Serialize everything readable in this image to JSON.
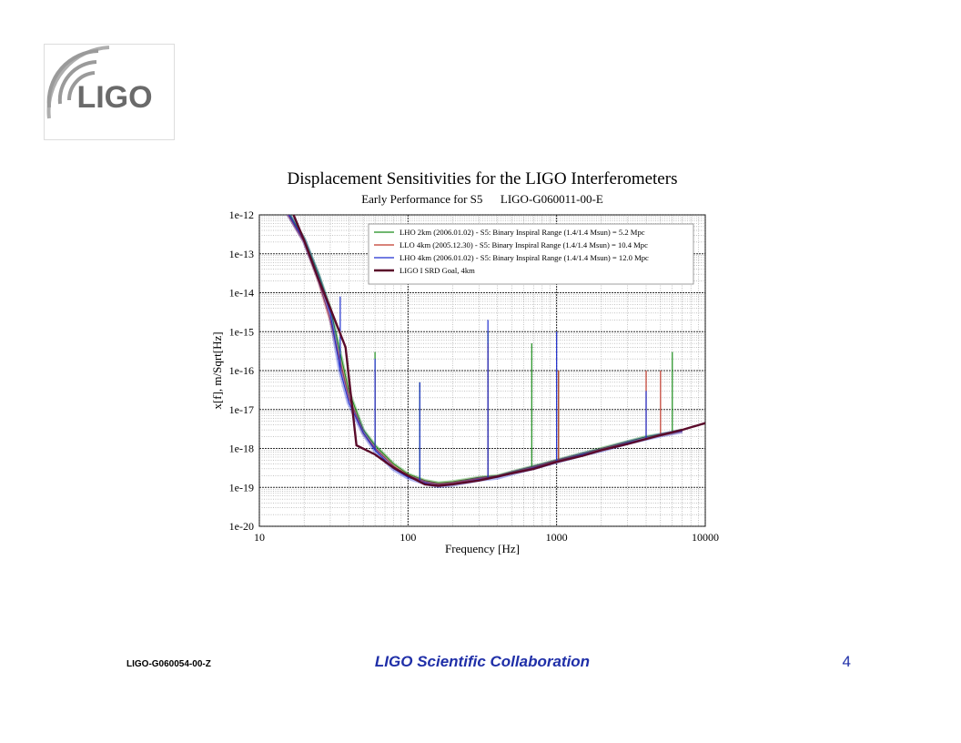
{
  "slide": {
    "footer_left": "LIGO-G060054-00-Z",
    "footer_center": "LIGO Scientific Collaboration",
    "page_number": "4",
    "accent_color": "#1f2fa8"
  },
  "logo": {
    "text": "LIGO",
    "icon": "ligo-wave-logo-icon"
  },
  "chart_data": {
    "type": "line",
    "title": "Displacement Sensitivities for the LIGO Interferometers",
    "subtitle": "Early Performance for S5      LIGO-G060011-00-E",
    "xlabel": "Frequency [Hz]",
    "ylabel": "x[f], m/Sqrt[Hz]",
    "x_scale": "log",
    "y_scale": "log",
    "xlim": [
      10,
      10000
    ],
    "ylim": [
      1e-20,
      1e-12
    ],
    "x_ticks": [
      "10",
      "100",
      "1000",
      "10000"
    ],
    "y_ticks": [
      "1e-12",
      "1e-13",
      "1e-14",
      "1e-15",
      "1e-16",
      "1e-17",
      "1e-18",
      "1e-19",
      "1e-20"
    ],
    "grid": true,
    "legend_position": "top-right",
    "series": [
      {
        "name": "LHO 2km (2006.01.02) - S5: Binary Inspiral Range (1.4/1.4 Msun) = 5.2 Mpc",
        "color": "#1a8c1a",
        "x": [
          15,
          20,
          25,
          30,
          40,
          50,
          60,
          80,
          100,
          130,
          160,
          200,
          250,
          300,
          400,
          500,
          700,
          1000,
          1500,
          2000,
          3000,
          4000,
          5000,
          6000,
          7000
        ],
        "y": [
          1.5e-12,
          2.5e-13,
          3e-14,
          4e-15,
          3e-17,
          3e-18,
          1.2e-18,
          4e-19,
          2.2e-19,
          1.5e-19,
          1.3e-19,
          1.4e-19,
          1.6e-19,
          1.8e-19,
          2e-19,
          2.5e-19,
          3.5e-19,
          5e-19,
          7.5e-19,
          1e-18,
          1.5e-18,
          2e-18,
          2.3e-18,
          2.6e-18,
          3e-18
        ],
        "peaks": [
          {
            "x": 60,
            "y": 3e-16
          },
          {
            "x": 120,
            "y": 5e-17
          },
          {
            "x": 345,
            "y": 1e-15
          },
          {
            "x": 680,
            "y": 5e-16
          },
          {
            "x": 1030,
            "y": 1e-16
          },
          {
            "x": 6000,
            "y": 3e-16
          }
        ]
      },
      {
        "name": "LLO 4km (2005.12.30) - S5: Binary Inspiral Range (1.4/1.4 Msun) = 10.4 Mpc",
        "color": "#c0392b",
        "x": [
          15,
          20,
          25,
          30,
          40,
          50,
          60,
          80,
          100,
          130,
          160,
          200,
          250,
          300,
          400,
          500,
          700,
          1000,
          1500,
          2000,
          3000,
          4000,
          5000,
          6000,
          7000
        ],
        "y": [
          1.3e-12,
          2e-13,
          2e-14,
          2e-15,
          2e-17,
          2.5e-18,
          1e-18,
          3.5e-19,
          2e-19,
          1.4e-19,
          1.2e-19,
          1.3e-19,
          1.5e-19,
          1.7e-19,
          1.9e-19,
          2.4e-19,
          3.3e-19,
          4.8e-19,
          7e-19,
          9.5e-19,
          1.4e-18,
          1.8e-18,
          2.2e-18,
          2.5e-18,
          2.8e-18
        ],
        "peaks": [
          {
            "x": 60,
            "y": 1e-16
          },
          {
            "x": 345,
            "y": 5e-16
          },
          {
            "x": 1030,
            "y": 1e-16
          },
          {
            "x": 4000,
            "y": 1e-16
          },
          {
            "x": 5000,
            "y": 1e-16
          }
        ]
      },
      {
        "name": "LHO 4km (2006.01.02) - S5: Binary Inspiral Range (1.4/1.4 Msun) = 12.0 Mpc",
        "color": "#1f2fd0",
        "x": [
          15,
          20,
          25,
          30,
          35,
          40,
          50,
          60,
          80,
          100,
          130,
          160,
          200,
          250,
          300,
          400,
          500,
          700,
          1000,
          1500,
          2000,
          3000,
          4000,
          5000,
          6000,
          7000
        ],
        "y": [
          1.4e-12,
          2.2e-13,
          2.5e-14,
          3e-15,
          1e-16,
          1.5e-17,
          2.5e-18,
          9e-19,
          3e-19,
          1.8e-19,
          1.3e-19,
          1.1e-19,
          1.2e-19,
          1.4e-19,
          1.6e-19,
          1.8e-19,
          2.3e-19,
          3.2e-19,
          4.6e-19,
          7e-19,
          9e-19,
          1.4e-18,
          1.8e-18,
          2.2e-18,
          2.5e-18,
          2.8e-18
        ],
        "peaks": [
          {
            "x": 35,
            "y": 8e-15
          },
          {
            "x": 60,
            "y": 2e-16
          },
          {
            "x": 120,
            "y": 5e-17
          },
          {
            "x": 345,
            "y": 2e-15
          },
          {
            "x": 1000,
            "y": 1e-15
          },
          {
            "x": 4000,
            "y": 3e-17
          }
        ]
      },
      {
        "name": "LIGO I SRD Goal, 4km",
        "color": "#5a0a2a",
        "x": [
          17,
          20,
          25,
          30,
          38,
          45,
          60,
          80,
          100,
          130,
          160,
          200,
          300,
          350,
          500,
          700,
          1000,
          1500,
          2000,
          3000,
          5000,
          7000,
          10000
        ],
        "y": [
          1e-12,
          2.2e-13,
          2.2e-14,
          4e-15,
          4e-16,
          1.2e-18,
          7e-19,
          3.2e-19,
          2e-19,
          1.2e-19,
          1.1e-19,
          1.2e-19,
          1.5e-19,
          1.7e-19,
          2.3e-19,
          3e-19,
          4.5e-19,
          6.5e-19,
          9e-19,
          1.3e-18,
          2.2e-18,
          3e-18,
          4.5e-18
        ],
        "peaks": []
      }
    ]
  }
}
